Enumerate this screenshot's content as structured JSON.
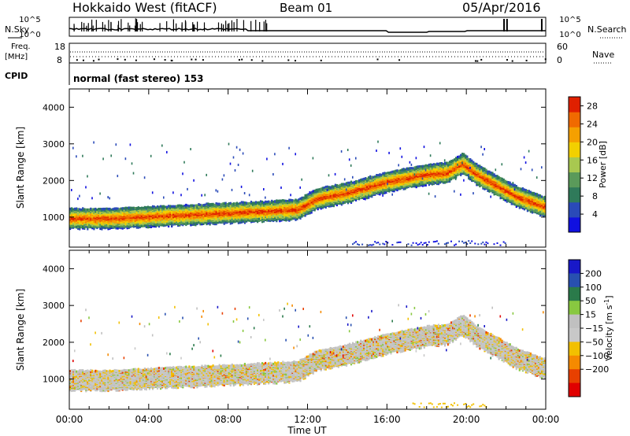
{
  "header": {
    "station": "Hokkaido West (fitACF)",
    "beam": "Beam 01",
    "date": "05/Apr/2016"
  },
  "strip_panels": {
    "nsky_label": "N.Sky",
    "nsky_ticks": [
      "10^5",
      "10^0"
    ],
    "nsearch_label": "N.Search",
    "nsearch_ticks": [
      "10^5",
      "10^0"
    ],
    "freq_label_line1": "Freq.",
    "freq_label_line2": "[MHz]",
    "freq_ticks": [
      "18",
      "8"
    ],
    "nave_label": "Nave",
    "nave_ticks": [
      "60",
      "0"
    ],
    "cpid_label": "CPID",
    "cpid_text": "normal (fast stereo) 153"
  },
  "colors": {
    "power_scale": [
      "#1010e0",
      "#2a4ab8",
      "#2f7a5a",
      "#5a9a5a",
      "#a8c850",
      "#f2d000",
      "#f5a000",
      "#f06a00",
      "#e02000"
    ],
    "velocity_scale": [
      "#1818c8",
      "#2850b0",
      "#2a7a4a",
      "#88c840",
      "#c0c0c0",
      "#c8c8c8",
      "#f2c000",
      "#f58a00",
      "#e84000",
      "#e00000"
    ]
  },
  "chart_data": [
    {
      "type": "heatmap",
      "title": "",
      "xlabel": "Time UT",
      "ylabel": "Slant Range [km]",
      "xlim": [
        "00:00",
        "24:00"
      ],
      "ylim": [
        180,
        4500
      ],
      "x_ticks": [
        "00:00",
        "04:00",
        "08:00",
        "12:00",
        "16:00",
        "20:00",
        "00:00"
      ],
      "y_ticks": [
        1000,
        2000,
        3000,
        4000
      ],
      "colorbar_label": "Power [dB]",
      "colorbar_ticks": [
        4,
        8,
        12,
        16,
        20,
        24,
        28
      ],
      "colorbar_range": [
        0,
        30
      ],
      "echo_band_center_km": [
        [
          0,
          1000
        ],
        [
          2,
          1000
        ],
        [
          4,
          1050
        ],
        [
          6,
          1100
        ],
        [
          8,
          1150
        ],
        [
          10,
          1200
        ],
        [
          11.5,
          1250
        ],
        [
          12.5,
          1550
        ],
        [
          14,
          1700
        ],
        [
          15,
          1850
        ],
        [
          16,
          2000
        ],
        [
          17,
          2100
        ],
        [
          18,
          2200
        ],
        [
          19,
          2250
        ],
        [
          19.8,
          2500
        ],
        [
          20.5,
          2200
        ],
        [
          21.5,
          1900
        ],
        [
          22.5,
          1600
        ],
        [
          24,
          1300
        ]
      ]
    },
    {
      "type": "heatmap",
      "title": "",
      "xlabel": "Time UT",
      "ylabel": "Slant Range [km]",
      "xlim": [
        "00:00",
        "24:00"
      ],
      "ylim": [
        180,
        4500
      ],
      "x_ticks": [
        "00:00",
        "04:00",
        "08:00",
        "12:00",
        "16:00",
        "20:00",
        "00:00"
      ],
      "y_ticks": [
        1000,
        2000,
        3000,
        4000
      ],
      "colorbar_label": "Velocity [m s-1]",
      "colorbar_label_text": "Velocity [m s",
      "colorbar_label_exp": "-1",
      "colorbar_label_close": "]",
      "colorbar_ticks": [
        200,
        100,
        50,
        15,
        -15,
        -50,
        -100,
        -200
      ],
      "colorbar_tick_labels": [
        "200",
        "100",
        "50",
        "15",
        "−15",
        "−50",
        "−100",
        "−200"
      ]
    }
  ]
}
